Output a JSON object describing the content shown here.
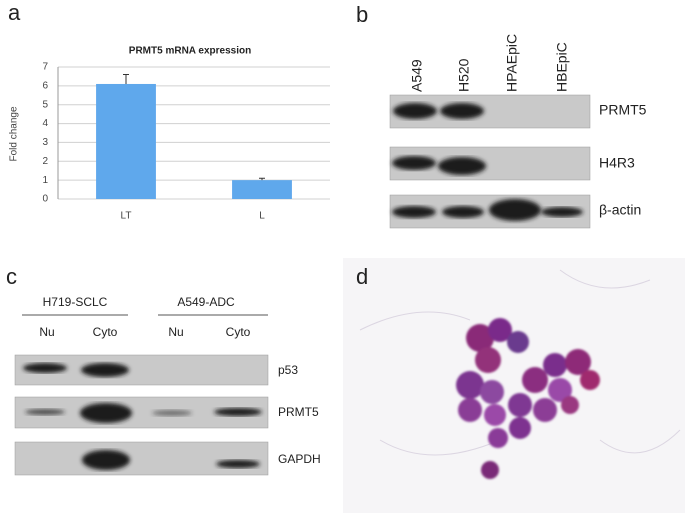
{
  "chart_data": {
    "type": "bar",
    "title": "PRMT5 mRNA expression",
    "y_label": "Fold change",
    "categories": [
      "LT",
      "L"
    ],
    "values": [
      6.1,
      1.0
    ],
    "errors": [
      0.5,
      0.1
    ],
    "color": "#5fa8ec",
    "ylim": [
      0,
      7
    ],
    "yticks": [
      0,
      1,
      2,
      3,
      4,
      5,
      6,
      7
    ],
    "grid": true
  },
  "panel_labels": [
    "a",
    "b",
    "c",
    "d"
  ],
  "blot_b": {
    "lanes": [
      "A549",
      "H520",
      "HPAEpiC",
      "HBEpiC"
    ],
    "bands": [
      "PRMT5",
      "H4R3",
      "β-actin"
    ]
  },
  "blot_c": {
    "groups": [
      "H719-SCLC",
      "A549-ADC"
    ],
    "lanes": [
      "Nu",
      "Cyto",
      "Nu",
      "Cyto"
    ],
    "bands": [
      "p53",
      "PRMT5",
      "GAPDH"
    ]
  }
}
